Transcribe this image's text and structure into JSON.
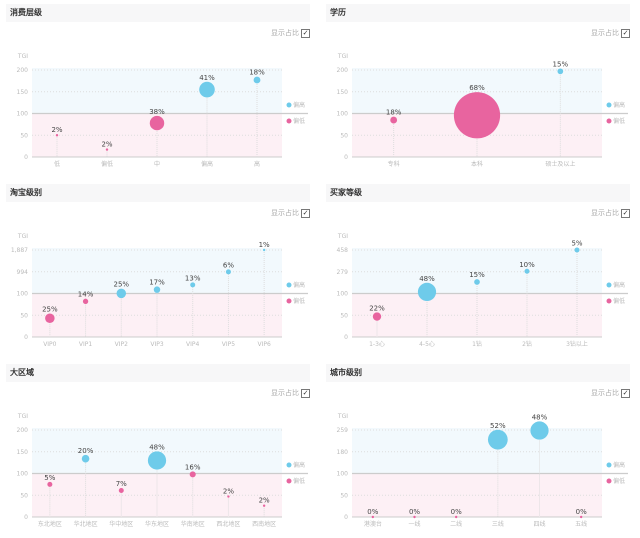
{
  "toggle_label": "显示占比",
  "legend": {
    "high": "偏高",
    "low": "偏低"
  },
  "y_axis_title": "TGI",
  "colors": {
    "high": "#6ecbea",
    "low": "#e8649f",
    "band_high": "#f2f9fd",
    "band_low": "#fdf0f5"
  },
  "chart_data": [
    {
      "type": "scatter",
      "title": "消费层级",
      "yticks": [
        "0",
        "50",
        "100",
        "150",
        "200"
      ],
      "ytick_values": [
        0,
        50,
        100,
        150,
        200
      ],
      "categories": [
        "低",
        "偏低",
        "中",
        "偏高",
        "高"
      ],
      "tgi": [
        50,
        17,
        78,
        155,
        177
      ],
      "share": [
        2,
        2,
        38,
        41,
        18
      ],
      "share_labels": [
        "2%",
        "2%",
        "38%",
        "41%",
        "18%"
      ]
    },
    {
      "type": "scatter",
      "title": "学历",
      "yticks": [
        "0",
        "50",
        "100",
        "150",
        "200"
      ],
      "ytick_values": [
        0,
        50,
        100,
        150,
        200
      ],
      "categories": [
        "专科",
        "本科",
        "硕士及以上"
      ],
      "tgi": [
        85,
        96,
        197
      ],
      "share": [
        18,
        68,
        15
      ],
      "share_labels": [
        "18%",
        "68%",
        "15%"
      ]
    },
    {
      "type": "scatter",
      "title": "淘宝级别",
      "yticks": [
        "0",
        "50",
        "100",
        "994",
        "1,887"
      ],
      "ytick_values": [
        0,
        50,
        100,
        994,
        1887
      ],
      "categories": [
        "VIP0",
        "VIP1",
        "VIP2",
        "VIP3",
        "VIP4",
        "VIP5",
        "VIP6"
      ],
      "tgi": [
        43,
        82,
        104,
        258,
        455,
        990,
        1887
      ],
      "share": [
        25,
        14,
        25,
        17,
        13,
        6,
        1
      ],
      "share_labels": [
        "25%",
        "14%",
        "25%",
        "17%",
        "13%",
        "6%",
        "1%"
      ]
    },
    {
      "type": "scatter",
      "title": "买家等级",
      "yticks": [
        "0",
        "50",
        "100",
        "279",
        "458"
      ],
      "ytick_values": [
        0,
        50,
        100,
        279,
        458
      ],
      "categories": [
        "1-3心",
        "4-5心",
        "1钻",
        "2钻",
        "3钻以上"
      ],
      "tgi": [
        47,
        113,
        195,
        283,
        458
      ],
      "share": [
        22,
        48,
        15,
        10,
        5
      ],
      "share_labels": [
        "22%",
        "48%",
        "15%",
        "10%",
        "5%"
      ]
    },
    {
      "type": "scatter",
      "title": "大区域",
      "yticks": [
        "0",
        "50",
        "100",
        "150",
        "200"
      ],
      "ytick_values": [
        0,
        50,
        100,
        150,
        200
      ],
      "categories": [
        "东北地区",
        "华北地区",
        "华中地区",
        "华东地区",
        "华南地区",
        "西北地区",
        "西南地区"
      ],
      "tgi": [
        75,
        134,
        61,
        130,
        98,
        47,
        26
      ],
      "share": [
        5,
        20,
        7,
        48,
        16,
        2,
        2
      ],
      "share_labels": [
        "5%",
        "20%",
        "7%",
        "48%",
        "16%",
        "2%",
        "2%"
      ]
    },
    {
      "type": "scatter",
      "title": "城市级别",
      "yticks": [
        "0",
        "50",
        "100",
        "180",
        "259"
      ],
      "ytick_values": [
        0,
        50,
        100,
        180,
        259
      ],
      "categories": [
        "港澳台",
        "一线",
        "二线",
        "三线",
        "四线",
        "五线"
      ],
      "tgi": [
        0,
        0,
        0,
        224,
        257,
        0
      ],
      "share": [
        0,
        0,
        0,
        52,
        48,
        0
      ],
      "share_labels": [
        "0%",
        "0%",
        "0%",
        "52%",
        "48%",
        "0%"
      ]
    }
  ]
}
